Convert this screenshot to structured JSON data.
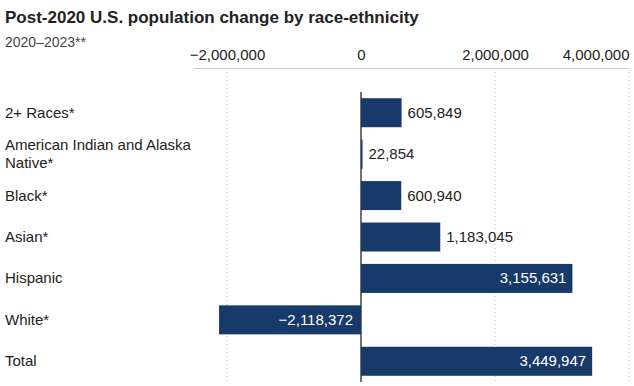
{
  "chart_data": {
    "type": "bar",
    "orientation": "horizontal",
    "title": "Post-2020 U.S. population change by race-ethnicity",
    "subtitle": "2020–2023**",
    "categories": [
      "2+ Races*",
      "American Indian and Alaska Native*",
      "Black*",
      "Asian*",
      "Hispanic",
      "White*",
      "Total"
    ],
    "values": [
      605849,
      22854,
      600940,
      1183045,
      3155631,
      -2118372,
      3449947
    ],
    "value_labels": [
      "605,849",
      "22,854",
      "600,940",
      "1,183,045",
      "3,155,631",
      "−2,118,372",
      "3,449,947"
    ],
    "color": "#173a6b",
    "xlim": [
      -2500000,
      4000000
    ],
    "xticks": [
      {
        "value": -2000000,
        "label": "−2,000,000"
      },
      0,
      {
        "value": 2000000,
        "label": "2,000,000"
      },
      {
        "value": 4000000,
        "label": "4,000,000"
      }
    ],
    "grid": true,
    "data_labels": true
  }
}
